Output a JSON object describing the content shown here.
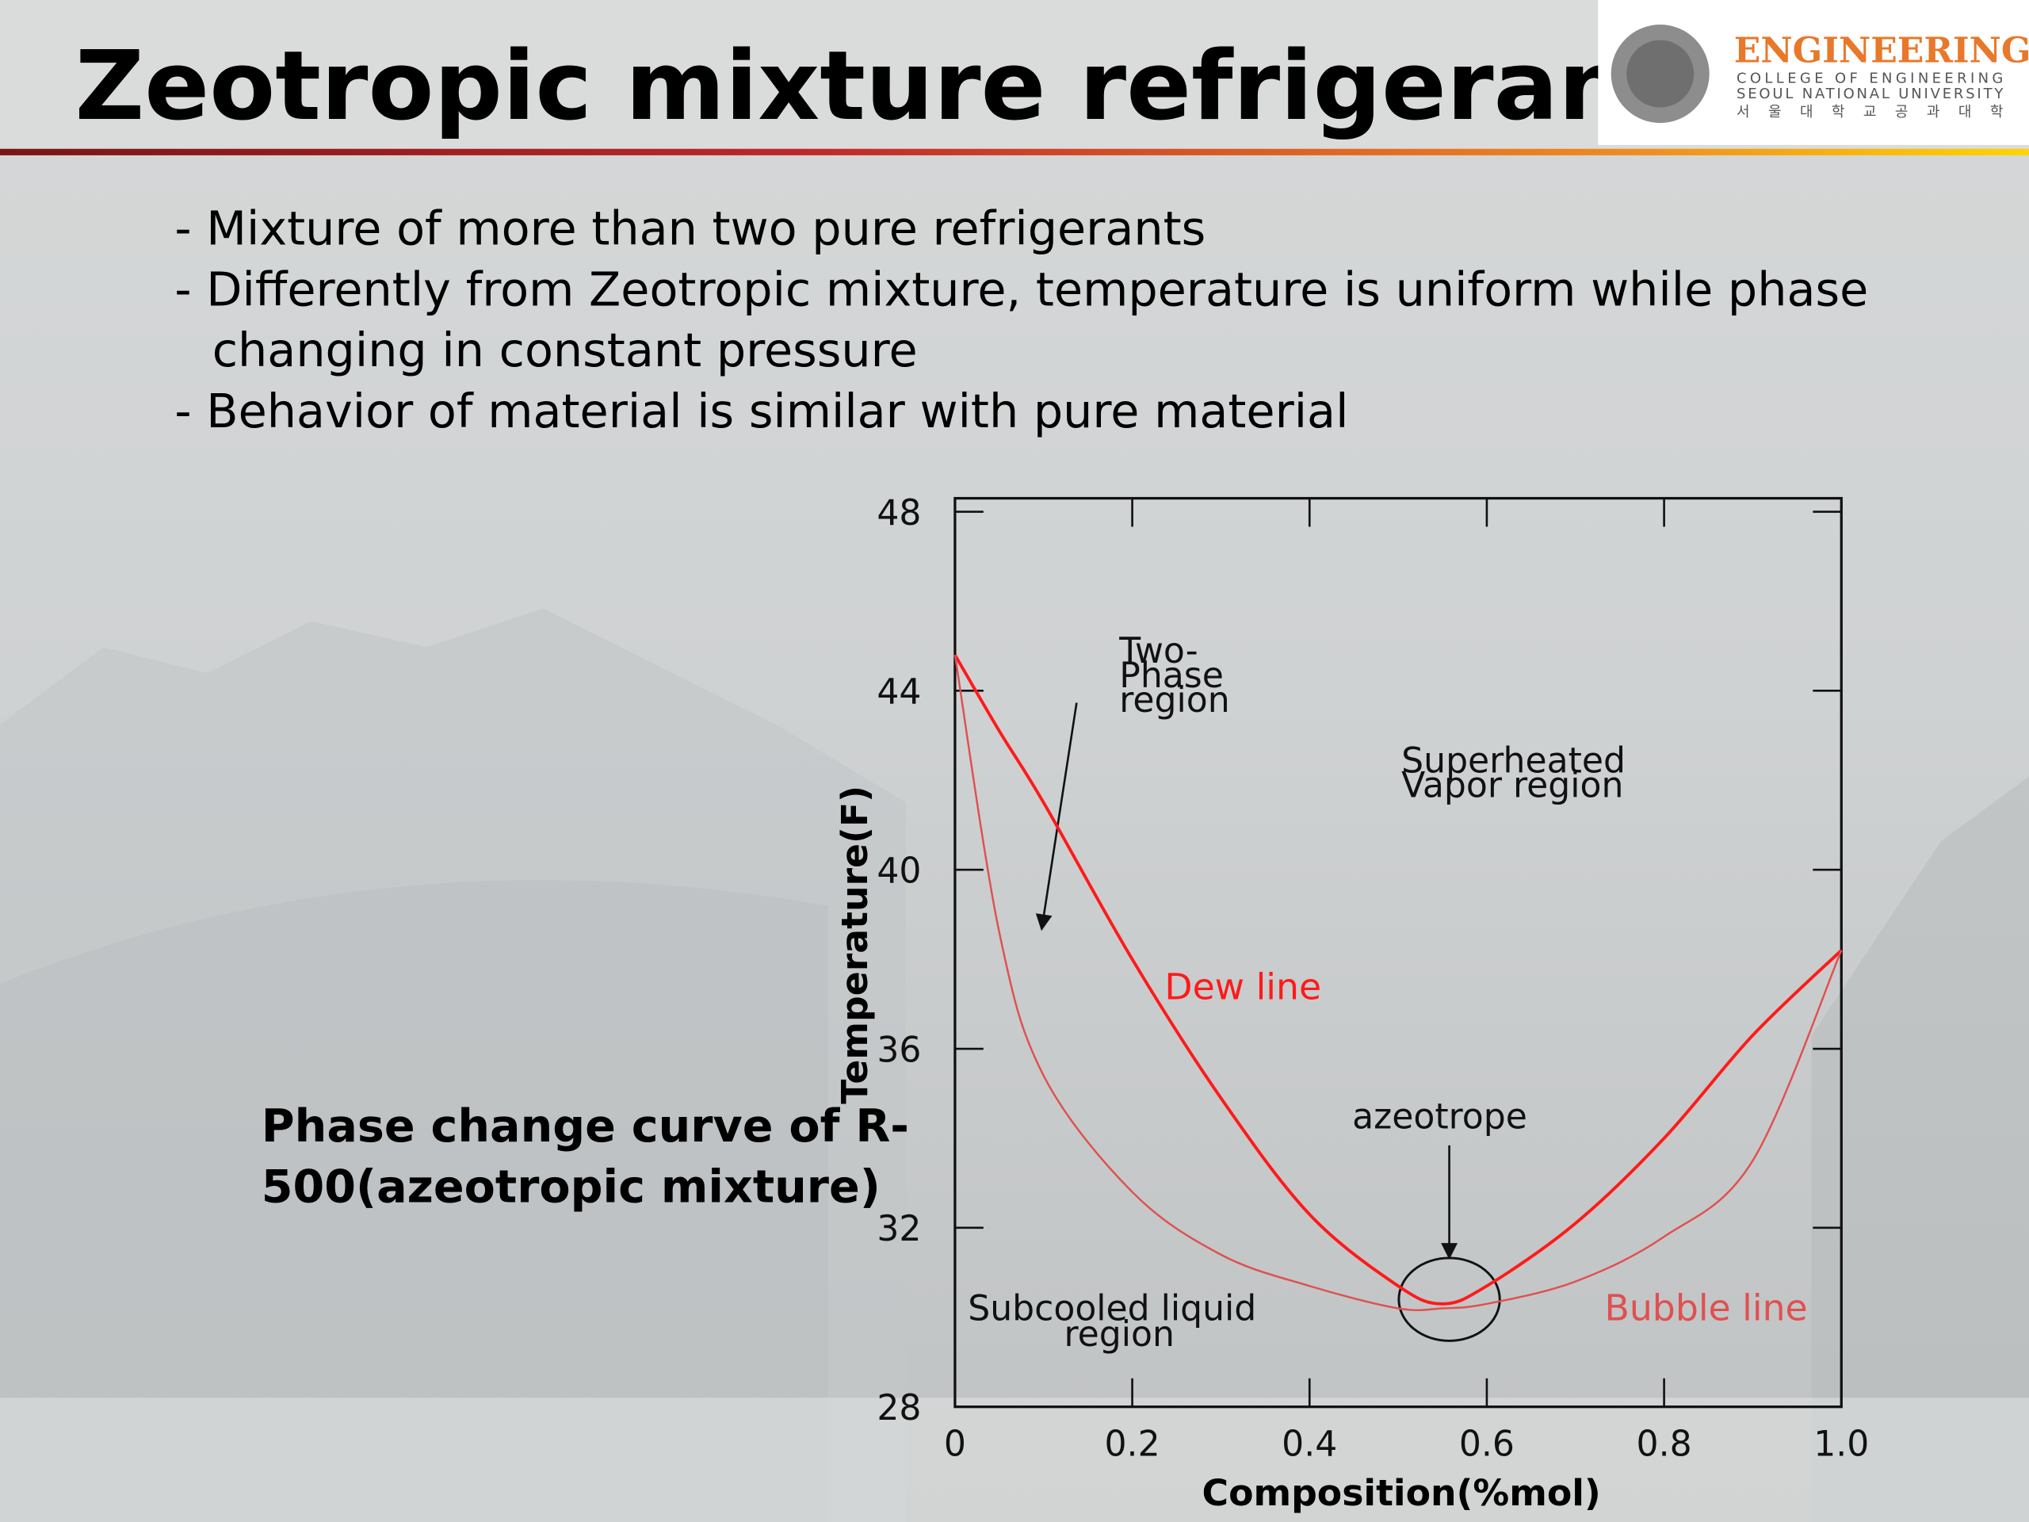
{
  "header": {
    "title": "Zeotropic mixture refrigerant",
    "logo": {
      "name": "ENGINEERING",
      "line1": "COLLEGE OF ENGINEERING",
      "line2": "SEOUL NATIONAL UNIVERSITY",
      "line3": "서 울 대 학 교 공 과 대 학"
    }
  },
  "bullet_lines": [
    "- Mixture of more than two pure refrigerants",
    "- Differently from Zeotropic mixture, temperature is uniform while phase",
    "changing in constant pressure",
    "- Behavior of material is similar with pure material"
  ],
  "caption": [
    "Phase change curve of R-",
    "500(azeotropic mixture)"
  ],
  "chart_data": {
    "type": "line",
    "x_label": "Composition(%mol)",
    "y_label": "Temperature(F)",
    "x": [
      0,
      0.05,
      0.1,
      0.2,
      0.3,
      0.4,
      0.5,
      0.55,
      0.6,
      0.7,
      0.8,
      0.9,
      1
    ],
    "series": [
      {
        "name": "Dew line",
        "color": "#ff1a1a",
        "values": [
          44.8,
          43.1,
          41.5,
          38.0,
          34.9,
          32.3,
          30.7,
          30.3,
          30.7,
          32.1,
          34.0,
          36.3,
          38.2
        ]
      },
      {
        "name": "Bubble line",
        "color": "#e05050",
        "values": [
          44.8,
          38.6,
          35.4,
          32.8,
          31.4,
          30.7,
          30.2,
          30.2,
          30.3,
          30.8,
          31.8,
          33.5,
          38.2
        ]
      }
    ],
    "xlim": [
      0,
      1
    ],
    "xticks": [
      0,
      0.2,
      0.4,
      0.6,
      0.8,
      {
        "value": 1,
        "label": "1.0"
      }
    ],
    "ylim": [
      28,
      48.3
    ],
    "yticks": [
      28,
      32,
      36,
      40,
      44,
      48
    ],
    "annotations": [
      {
        "lines": [
          "Two-",
          "Phase",
          "region"
        ]
      },
      {
        "lines": [
          "Superheated",
          "Vapor region"
        ]
      },
      {
        "lines": [
          "azeotrope"
        ]
      },
      {
        "lines": [
          "Subcooled liquid",
          "region"
        ]
      }
    ]
  }
}
